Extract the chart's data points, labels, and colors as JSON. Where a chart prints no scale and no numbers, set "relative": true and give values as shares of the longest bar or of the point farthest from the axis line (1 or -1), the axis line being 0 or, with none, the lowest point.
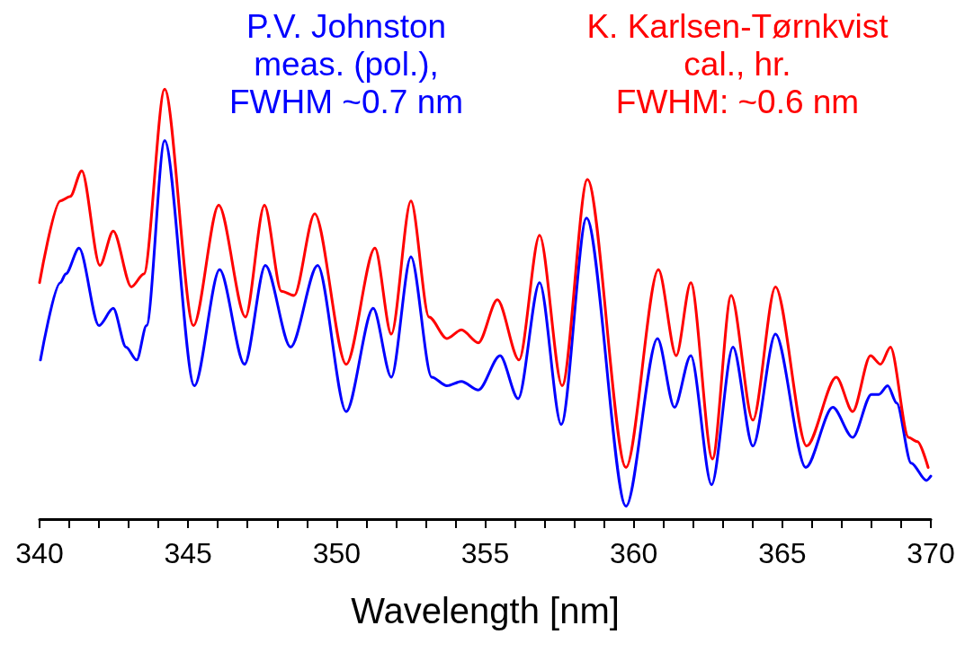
{
  "chart_data": {
    "type": "line",
    "xlabel": "Wavelength [nm]",
    "relative": true,
    "legend": false,
    "grid": false,
    "marker": "none",
    "line_style": "solid",
    "xlim": [
      340,
      370
    ],
    "xticks": [
      340,
      {
        "value": 341,
        "label": null
      },
      {
        "value": 342,
        "label": null
      },
      {
        "value": 343,
        "label": null
      },
      {
        "value": 344,
        "label": null
      },
      345,
      {
        "value": 346,
        "label": null
      },
      {
        "value": 347,
        "label": null
      },
      {
        "value": 348,
        "label": null
      },
      {
        "value": 349,
        "label": null
      },
      350,
      {
        "value": 351,
        "label": null
      },
      {
        "value": 352,
        "label": null
      },
      {
        "value": 353,
        "label": null
      },
      {
        "value": 354,
        "label": null
      },
      355,
      {
        "value": 356,
        "label": null
      },
      {
        "value": 357,
        "label": null
      },
      {
        "value": 358,
        "label": null
      },
      {
        "value": 359,
        "label": null
      },
      360,
      {
        "value": 361,
        "label": null
      },
      {
        "value": 362,
        "label": null
      },
      {
        "value": 363,
        "label": null
      },
      {
        "value": 364,
        "label": null
      },
      365,
      {
        "value": 366,
        "label": null
      },
      {
        "value": 367,
        "label": null
      },
      {
        "value": 368,
        "label": null
      },
      {
        "value": 369,
        "label": null
      },
      370
    ],
    "series": [
      {
        "name": "K. Karlsen-Tørnkvist\ncal., hr.\nFWHM: ~0.6 nm",
        "color": "#ff0000",
        "x": [
          340.0,
          340.7,
          341.03,
          341.42,
          342.03,
          342.48,
          343.09,
          343.51,
          344.21,
          345.18,
          346.03,
          346.93,
          347.57,
          348.14,
          348.57,
          349.26,
          350.32,
          351.29,
          351.84,
          352.5,
          353.11,
          353.71,
          354.2,
          354.77,
          355.41,
          356.14,
          356.83,
          357.59,
          358.44,
          359.74,
          360.83,
          361.43,
          361.92,
          362.65,
          363.28,
          364.01,
          364.77,
          365.82,
          366.82,
          367.37,
          367.97,
          368.31,
          368.64,
          369.25,
          369.55,
          369.91
        ],
        "values": [
          0.55,
          0.74,
          0.75,
          0.81,
          0.59,
          0.67,
          0.54,
          0.57,
          1.0,
          0.45,
          0.73,
          0.47,
          0.73,
          0.53,
          0.52,
          0.71,
          0.36,
          0.63,
          0.43,
          0.74,
          0.47,
          0.42,
          0.44,
          0.41,
          0.51,
          0.37,
          0.66,
          0.31,
          0.79,
          0.12,
          0.58,
          0.38,
          0.55,
          0.14,
          0.52,
          0.23,
          0.54,
          0.17,
          0.33,
          0.25,
          0.38,
          0.36,
          0.4,
          0.19,
          0.18,
          0.12
        ]
      },
      {
        "name": "P.V. Johnston\nmeas. (pol.),\nFWHM ~0.7 nm",
        "color": "#0000ff",
        "x": [
          340.03,
          340.7,
          340.88,
          341.33,
          342.0,
          342.48,
          342.91,
          343.27,
          343.6,
          344.21,
          345.21,
          346.06,
          346.9,
          347.6,
          348.45,
          349.36,
          350.32,
          351.23,
          351.84,
          352.5,
          353.2,
          353.71,
          354.2,
          354.77,
          355.5,
          356.11,
          356.83,
          357.56,
          358.41,
          359.74,
          360.8,
          361.37,
          361.92,
          362.62,
          363.34,
          364.01,
          364.77,
          365.79,
          366.7,
          367.37,
          368.0,
          368.25,
          368.55,
          368.85,
          369.34,
          369.85,
          370.0
        ],
        "values": [
          0.37,
          0.55,
          0.57,
          0.63,
          0.45,
          0.49,
          0.4,
          0.37,
          0.45,
          0.88,
          0.31,
          0.58,
          0.36,
          0.59,
          0.4,
          0.59,
          0.25,
          0.49,
          0.33,
          0.61,
          0.33,
          0.31,
          0.32,
          0.3,
          0.38,
          0.28,
          0.55,
          0.22,
          0.7,
          0.03,
          0.42,
          0.26,
          0.38,
          0.08,
          0.4,
          0.17,
          0.43,
          0.12,
          0.26,
          0.19,
          0.29,
          0.29,
          0.31,
          0.27,
          0.13,
          0.09,
          0.1
        ]
      }
    ]
  }
}
